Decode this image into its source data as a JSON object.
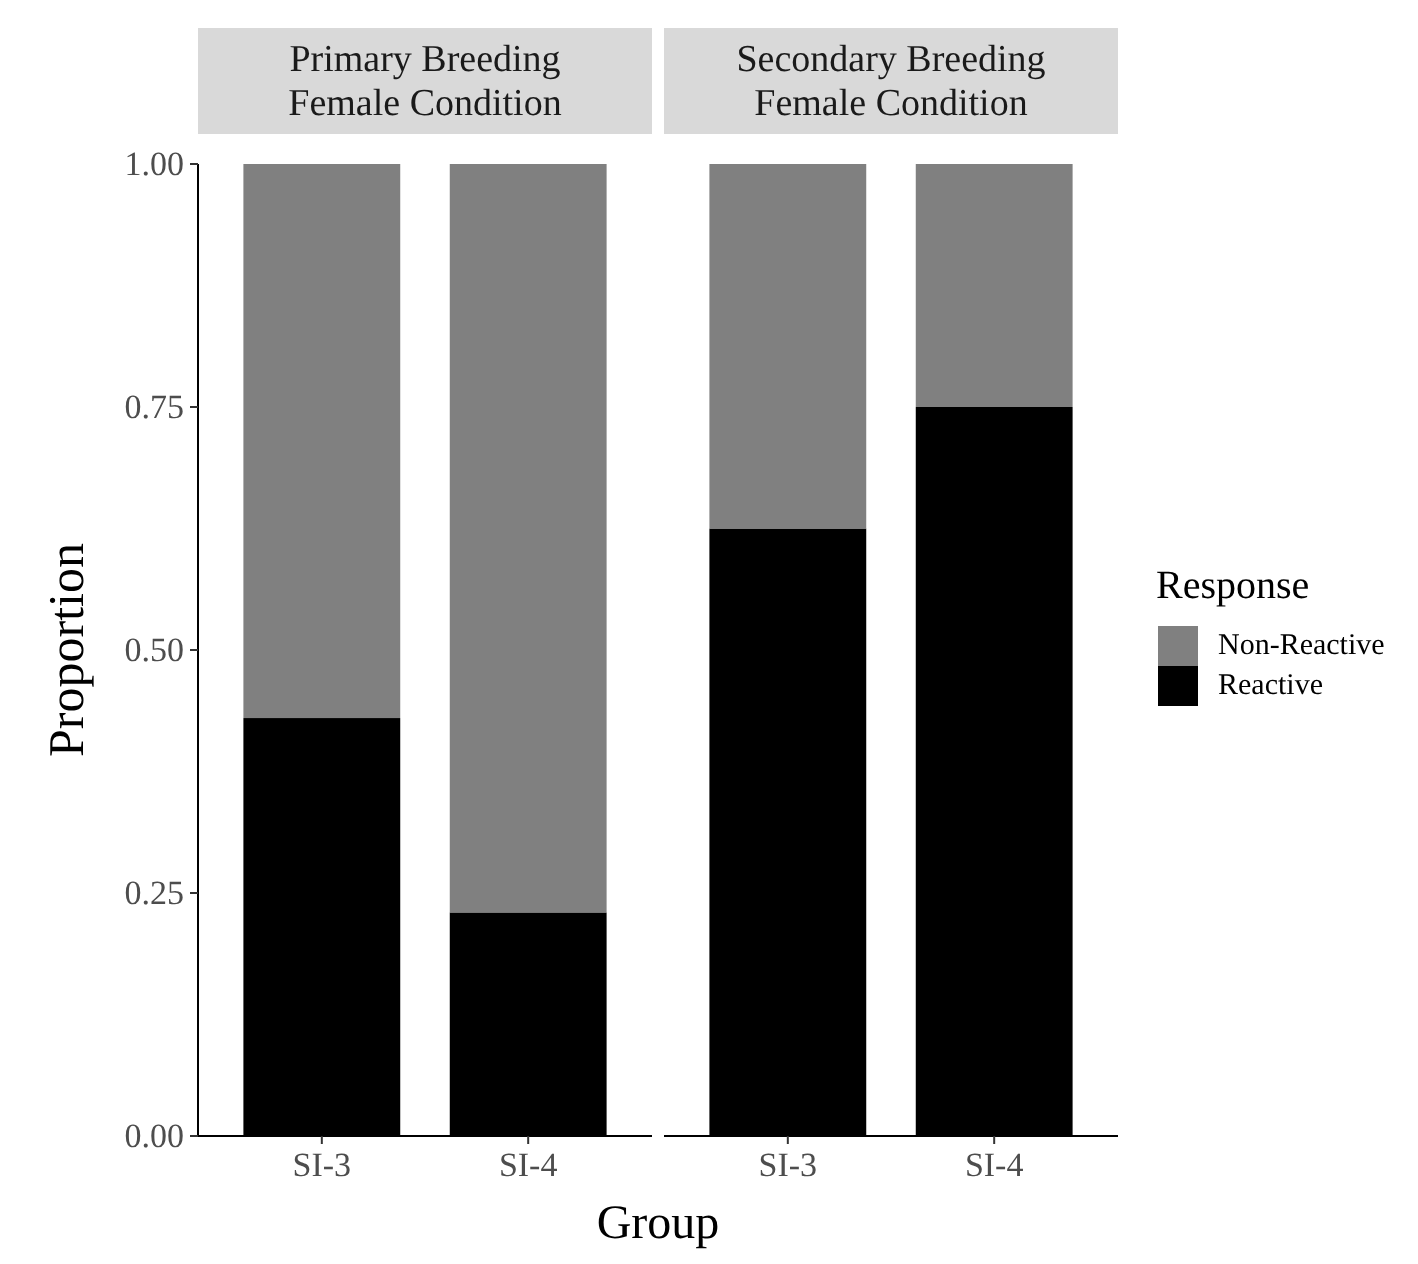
{
  "chart_data": [
    {
      "type": "bar",
      "title": "Primary Breeding\nFemale Condition",
      "categories": [
        "SI-3",
        "SI-4"
      ],
      "stacked": true,
      "ylim": [
        0,
        1
      ],
      "yticks": [
        {
          "value": 0,
          "label": "0.00"
        },
        {
          "value": 0.25,
          "label": "0.25"
        },
        {
          "value": 0.5,
          "label": "0.50"
        },
        {
          "value": 0.75,
          "label": "0.75"
        },
        {
          "value": 1,
          "label": "1.00"
        }
      ],
      "ylabel": "Proportion",
      "xlabel": "Group",
      "series": [
        {
          "color": "#000000",
          "values": [
            0.43,
            0.23
          ]
        },
        {
          "color": "#808080",
          "values": [
            0.57,
            0.77
          ]
        }
      ]
    },
    {
      "type": "bar",
      "title": "Secondary Breeding\nFemale Condition",
      "categories": [
        "SI-3",
        "SI-4"
      ],
      "stacked": true,
      "ylim": [
        0,
        1
      ],
      "tick_labels": "x",
      "legend": "right",
      "legend_title": "Response",
      "series": [
        {
          "name": "Reactive",
          "color": "#000000",
          "values": [
            0.625,
            0.75
          ]
        },
        {
          "name": "Non-Reactive",
          "color": "#808080",
          "values": [
            0.375,
            0.25
          ]
        }
      ]
    }
  ]
}
